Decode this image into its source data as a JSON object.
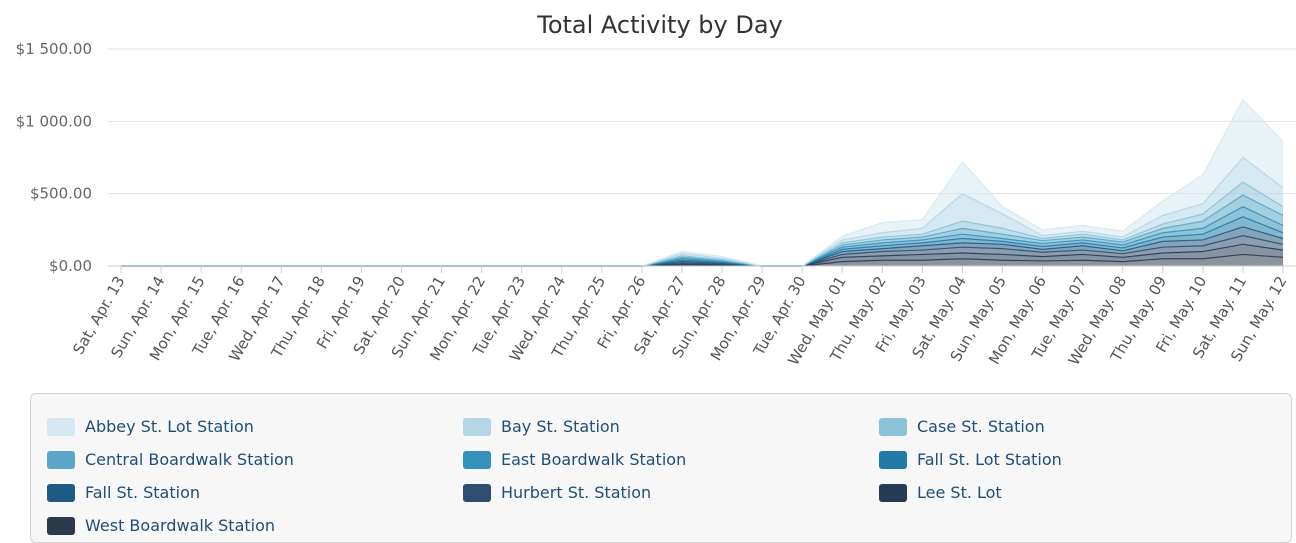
{
  "chart_data": {
    "type": "area",
    "stacked": true,
    "title": "Total Activity by Day",
    "xlabel": "",
    "ylabel": "",
    "ylim": [
      0,
      1500
    ],
    "y_ticks": [
      {
        "value": 0,
        "label": "$0.00"
      },
      {
        "value": 500,
        "label": "$500.00"
      },
      {
        "value": 1000,
        "label": "$1 000.00"
      },
      {
        "value": 1500,
        "label": "$1 500.00"
      }
    ],
    "grid": true,
    "legend_position": "bottom",
    "categories": [
      "Sat, Apr. 13",
      "Sun, Apr. 14",
      "Mon, Apr. 15",
      "Tue, Apr. 16",
      "Wed, Apr. 17",
      "Thu, Apr. 18",
      "Fri, Apr. 19",
      "Sat, Apr. 20",
      "Sun, Apr. 21",
      "Mon, Apr. 22",
      "Tue, Apr. 23",
      "Wed, Apr. 24",
      "Thu, Apr. 25",
      "Fri, Apr. 26",
      "Sat, Apr. 27",
      "Sun, Apr. 28",
      "Mon, Apr. 29",
      "Tue, Apr. 30",
      "Wed, May. 01",
      "Thu, May. 02",
      "Fri, May. 03",
      "Sat, May. 04",
      "Sun, May. 05",
      "Mon, May. 06",
      "Tue, May. 07",
      "Wed, May. 08",
      "Thu, May. 09",
      "Fri, May. 10",
      "Sat, May. 11",
      "Sun, May. 12"
    ],
    "series": [
      {
        "name": "West Boardwalk Station",
        "color": "#2b3a4a",
        "values": [
          0,
          0,
          0,
          0,
          0,
          0,
          0,
          0,
          0,
          0,
          0,
          0,
          0,
          0,
          5,
          3,
          0,
          0,
          30,
          40,
          40,
          50,
          40,
          35,
          40,
          30,
          50,
          50,
          80,
          60
        ]
      },
      {
        "name": "Lee St. Lot",
        "color": "#243b55",
        "values": [
          0,
          0,
          0,
          0,
          0,
          0,
          0,
          0,
          0,
          0,
          0,
          0,
          0,
          0,
          8,
          5,
          0,
          0,
          30,
          30,
          40,
          40,
          40,
          30,
          40,
          30,
          40,
          50,
          70,
          50
        ]
      },
      {
        "name": "Hurbert St. Station",
        "color": "#2e4d70",
        "values": [
          0,
          0,
          0,
          0,
          0,
          0,
          0,
          0,
          0,
          0,
          0,
          0,
          0,
          0,
          8,
          5,
          0,
          0,
          20,
          30,
          30,
          40,
          40,
          30,
          30,
          25,
          40,
          40,
          60,
          40
        ]
      },
      {
        "name": "Fall St. Station",
        "color": "#1f5a85",
        "values": [
          0,
          0,
          0,
          0,
          0,
          0,
          0,
          0,
          0,
          0,
          0,
          0,
          0,
          0,
          10,
          6,
          0,
          0,
          20,
          20,
          30,
          30,
          30,
          20,
          30,
          20,
          40,
          40,
          60,
          40
        ]
      },
      {
        "name": "Fall St. Lot Station",
        "color": "#217aa8",
        "values": [
          0,
          0,
          0,
          0,
          0,
          0,
          0,
          0,
          0,
          0,
          0,
          0,
          0,
          0,
          10,
          6,
          0,
          0,
          15,
          20,
          20,
          30,
          20,
          20,
          20,
          20,
          30,
          40,
          70,
          40
        ]
      },
      {
        "name": "East Boardwalk Station",
        "color": "#3590bb",
        "values": [
          0,
          0,
          0,
          0,
          0,
          0,
          0,
          0,
          0,
          0,
          0,
          0,
          0,
          0,
          10,
          6,
          0,
          0,
          15,
          20,
          20,
          30,
          20,
          20,
          20,
          20,
          30,
          40,
          70,
          50
        ]
      },
      {
        "name": "Central Boardwalk Station",
        "color": "#5aa7c9",
        "values": [
          0,
          0,
          0,
          0,
          0,
          0,
          0,
          0,
          0,
          0,
          0,
          0,
          0,
          0,
          10,
          6,
          0,
          0,
          15,
          20,
          20,
          40,
          30,
          20,
          20,
          20,
          30,
          50,
          80,
          70
        ]
      },
      {
        "name": "Case St. Station",
        "color": "#8cc2d9",
        "values": [
          0,
          0,
          0,
          0,
          0,
          0,
          0,
          0,
          0,
          0,
          0,
          0,
          0,
          0,
          10,
          6,
          0,
          0,
          15,
          20,
          20,
          50,
          40,
          15,
          20,
          15,
          30,
          50,
          90,
          60
        ]
      },
      {
        "name": "Bay St. Station",
        "color": "#b4d7e7",
        "values": [
          0,
          0,
          0,
          0,
          0,
          0,
          0,
          0,
          0,
          0,
          0,
          0,
          0,
          0,
          15,
          10,
          0,
          0,
          20,
          30,
          40,
          190,
          100,
          20,
          20,
          20,
          60,
          70,
          170,
          130
        ]
      },
      {
        "name": "Abbey St. Lot Station",
        "color": "#d5e8f1",
        "values": [
          0,
          0,
          0,
          0,
          0,
          0,
          0,
          0,
          0,
          0,
          0,
          0,
          0,
          0,
          14,
          13,
          0,
          0,
          25,
          70,
          60,
          220,
          50,
          40,
          40,
          40,
          100,
          200,
          400,
          320
        ]
      }
    ]
  },
  "legend": {
    "items": [
      {
        "label": "Abbey St. Lot Station",
        "color": "#d5e8f1"
      },
      {
        "label": "Bay St. Station",
        "color": "#b4d7e7"
      },
      {
        "label": "Case St. Station",
        "color": "#8cc2d9"
      },
      {
        "label": "Central Boardwalk Station",
        "color": "#5aa7c9"
      },
      {
        "label": "East Boardwalk Station",
        "color": "#3590bb"
      },
      {
        "label": "Fall St. Lot Station",
        "color": "#217aa8"
      },
      {
        "label": "Fall St. Station",
        "color": "#1f5a85"
      },
      {
        "label": "Hurbert St. Station",
        "color": "#2e4d70"
      },
      {
        "label": "Lee St. Lot",
        "color": "#243b55"
      },
      {
        "label": "West Boardwalk Station",
        "color": "#2b3a4a"
      }
    ]
  }
}
